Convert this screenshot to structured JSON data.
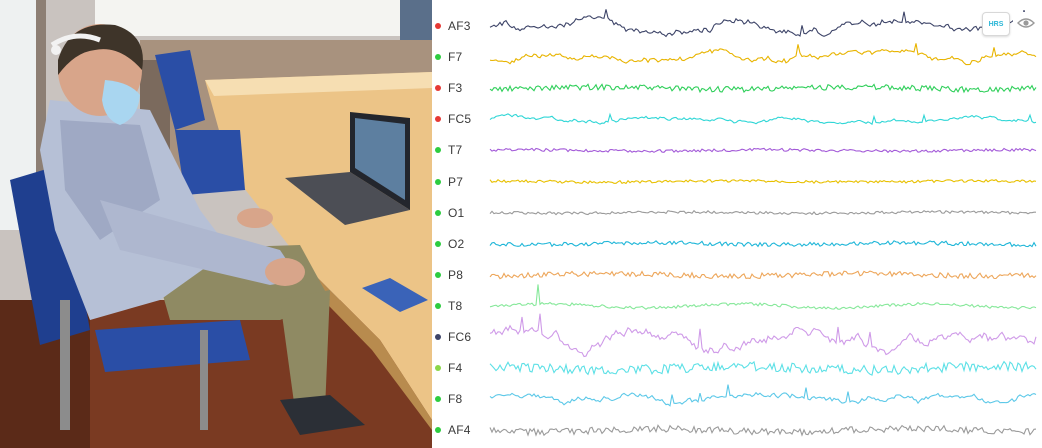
{
  "channels": [
    {
      "label": "AF3",
      "status_color": "#e53935",
      "trace_color": "#3d4468",
      "amplitude": 9,
      "style": "slow"
    },
    {
      "label": "F7",
      "status_color": "#2ecc40",
      "trace_color": "#e8b400",
      "amplitude": 8,
      "style": "slow"
    },
    {
      "label": "F3",
      "status_color": "#e53935",
      "trace_color": "#2fcf5a",
      "amplitude": 4,
      "style": "noisy"
    },
    {
      "label": "FC5",
      "status_color": "#e53935",
      "trace_color": "#2fd6d6",
      "amplitude": 5,
      "style": "slow"
    },
    {
      "label": "T7",
      "status_color": "#2ecc40",
      "trace_color": "#a35ad8",
      "amplitude": 2,
      "style": "noisy"
    },
    {
      "label": "P7",
      "status_color": "#2ecc40",
      "trace_color": "#e8c000",
      "amplitude": 2,
      "style": "noisy"
    },
    {
      "label": "O1",
      "status_color": "#2ecc40",
      "trace_color": "#9a9a9a",
      "amplitude": 2,
      "style": "noisy"
    },
    {
      "label": "O2",
      "status_color": "#2ecc40",
      "trace_color": "#1fb6d8",
      "amplitude": 3,
      "style": "noisy"
    },
    {
      "label": "P8",
      "status_color": "#2ecc40",
      "trace_color": "#eda65a",
      "amplitude": 4,
      "style": "noisy"
    },
    {
      "label": "T8",
      "status_color": "#2ecc40",
      "trace_color": "#86e89a",
      "amplitude": 14,
      "style": "spiky"
    },
    {
      "label": "FC6",
      "status_color": "#3d4468",
      "trace_color": "#cf9ae8",
      "amplitude": 14,
      "style": "slow"
    },
    {
      "label": "F4",
      "status_color": "#8bd64a",
      "trace_color": "#5ce0e6",
      "amplitude": 7,
      "style": "noisy"
    },
    {
      "label": "F8",
      "status_color": "#2ecc40",
      "trace_color": "#5cc8e8",
      "amplitude": 8,
      "style": "slow"
    },
    {
      "label": "AF4",
      "status_color": "#2ecc40",
      "trace_color": "#9a9a9a",
      "amplitude": 5,
      "style": "noisy"
    }
  ],
  "toolbar": {
    "hrs_label": "HRS",
    "eye_icon": "eye-icon"
  },
  "photo": {
    "description_icon": "photo-subject-eeg-headset"
  }
}
